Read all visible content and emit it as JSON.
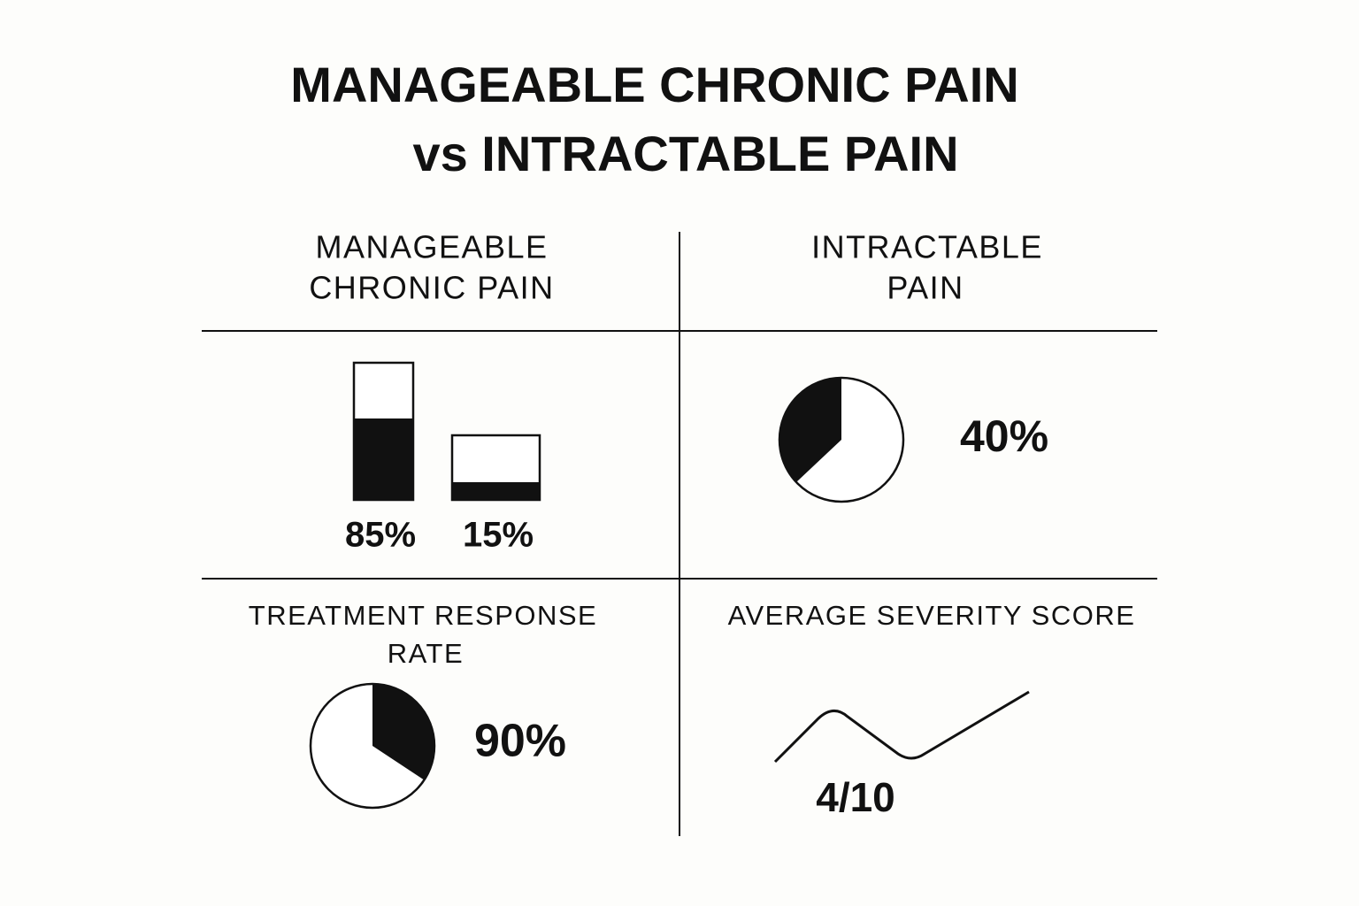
{
  "title": [
    "MANAGEABLE CHRONIC PAIN",
    "vs INTRACTABLE PAIN"
  ],
  "columns": [
    {
      "heading": [
        "MANAGEABLE",
        "CHRONIC PAIN"
      ],
      "stats": [
        "85%",
        "15%"
      ]
    },
    {
      "heading": [
        "INTRACTABLE",
        "PAIN"
      ],
      "stats": [
        "40%"
      ]
    }
  ],
  "panels": [
    {
      "heading": [
        "TREATMENT RESPONSE",
        "RATE"
      ],
      "stat": "90%"
    },
    {
      "heading": [
        "AVERAGE SEVERITY SCORE"
      ],
      "stat": "4/10"
    }
  ]
}
